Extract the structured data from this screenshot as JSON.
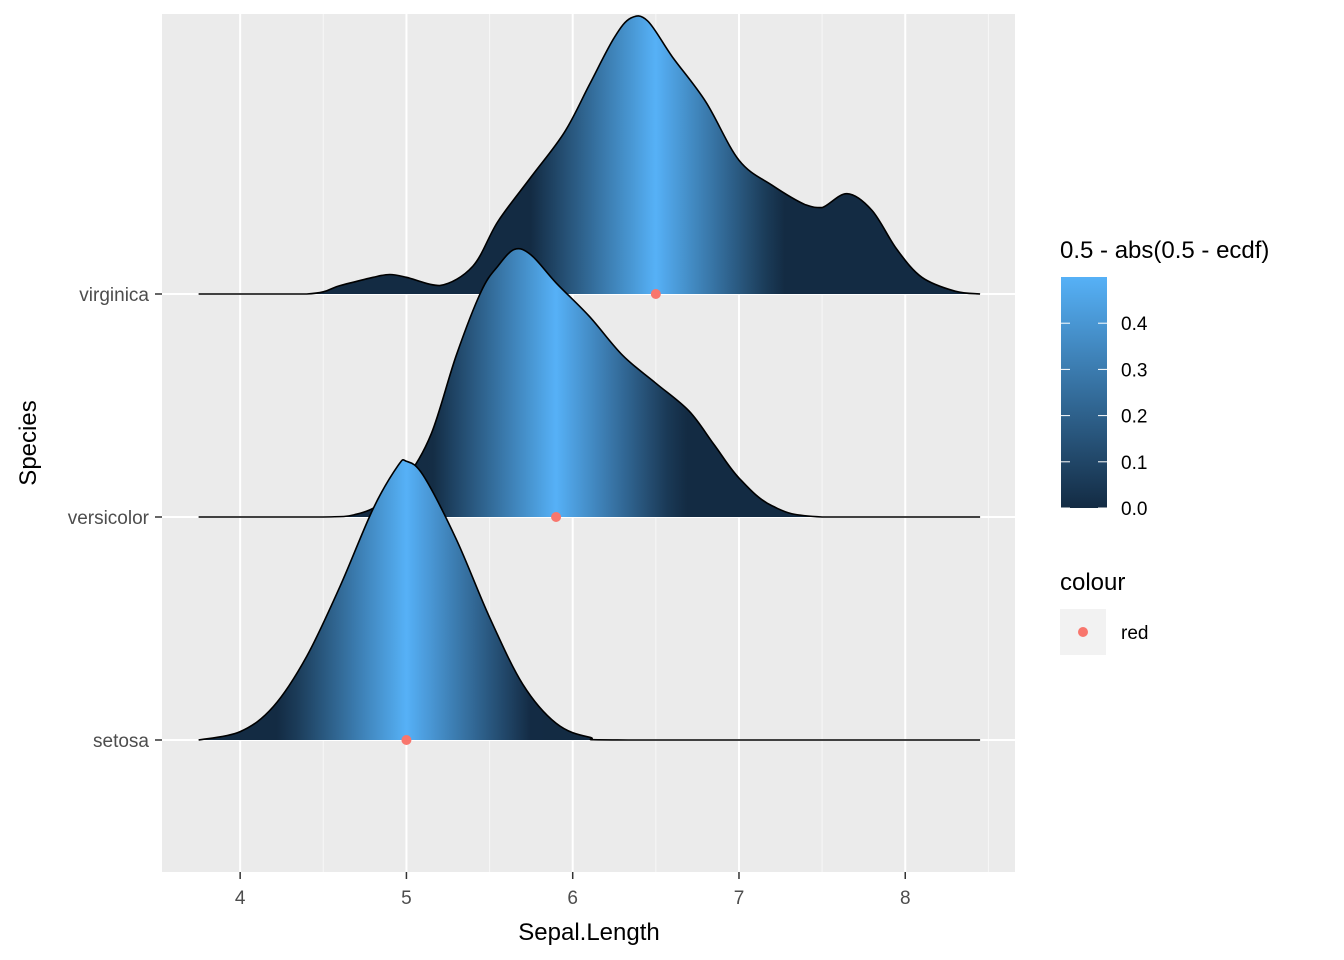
{
  "chart_data": {
    "type": "area",
    "subtype": "ridgeline density with quantile gradient fill",
    "xlabel": "Sepal.Length",
    "ylabel": "Species",
    "xlim": [
      3.53,
      8.66
    ],
    "x_ticks": [
      "4",
      "5",
      "6",
      "7",
      "8"
    ],
    "x_tick_values": [
      4,
      5,
      6,
      7,
      8
    ],
    "categories": [
      "setosa",
      "versicolor",
      "virginica"
    ],
    "scale": 2.5,
    "density_range": [
      3.75,
      8.45
    ],
    "series": [
      {
        "name": "setosa",
        "median": 5.0,
        "points": [
          [
            3.75,
            0.0
          ],
          [
            4.0,
            0.03
          ],
          [
            4.2,
            0.12
          ],
          [
            4.4,
            0.3
          ],
          [
            4.6,
            0.55
          ],
          [
            4.8,
            0.83
          ],
          [
            4.95,
            0.985
          ],
          [
            5.0,
            1.0
          ],
          [
            5.1,
            0.95
          ],
          [
            5.3,
            0.72
          ],
          [
            5.5,
            0.44
          ],
          [
            5.7,
            0.2
          ],
          [
            5.9,
            0.06
          ],
          [
            6.1,
            0.01
          ],
          [
            6.35,
            0.0
          ],
          [
            8.45,
            0.0
          ]
        ]
      },
      {
        "name": "versicolor",
        "median": 5.9,
        "points": [
          [
            3.75,
            0.0
          ],
          [
            4.5,
            0.0
          ],
          [
            4.7,
            0.01
          ],
          [
            4.85,
            0.05
          ],
          [
            5.0,
            0.14
          ],
          [
            5.15,
            0.3
          ],
          [
            5.3,
            0.58
          ],
          [
            5.45,
            0.81
          ],
          [
            5.55,
            0.9
          ],
          [
            5.65,
            0.96
          ],
          [
            5.75,
            0.94
          ],
          [
            5.9,
            0.84
          ],
          [
            6.1,
            0.72
          ],
          [
            6.3,
            0.58
          ],
          [
            6.5,
            0.48
          ],
          [
            6.7,
            0.38
          ],
          [
            6.85,
            0.26
          ],
          [
            7.0,
            0.14
          ],
          [
            7.2,
            0.04
          ],
          [
            7.5,
            0.0
          ],
          [
            8.45,
            0.0
          ]
        ]
      },
      {
        "name": "virginica",
        "median": 6.5,
        "points": [
          [
            3.75,
            0.0
          ],
          [
            4.4,
            0.0
          ],
          [
            4.6,
            0.03
          ],
          [
            4.8,
            0.06
          ],
          [
            4.9,
            0.07
          ],
          [
            5.0,
            0.06
          ],
          [
            5.2,
            0.03
          ],
          [
            5.4,
            0.1
          ],
          [
            5.55,
            0.26
          ],
          [
            5.75,
            0.42
          ],
          [
            5.95,
            0.58
          ],
          [
            6.1,
            0.75
          ],
          [
            6.25,
            0.92
          ],
          [
            6.35,
            0.99
          ],
          [
            6.45,
            0.98
          ],
          [
            6.6,
            0.85
          ],
          [
            6.8,
            0.69
          ],
          [
            7.0,
            0.48
          ],
          [
            7.2,
            0.39
          ],
          [
            7.4,
            0.32
          ],
          [
            7.5,
            0.31
          ],
          [
            7.65,
            0.36
          ],
          [
            7.8,
            0.3
          ],
          [
            7.95,
            0.16
          ],
          [
            8.1,
            0.06
          ],
          [
            8.3,
            0.01
          ],
          [
            8.45,
            0.0
          ]
        ]
      }
    ],
    "median_points": [
      {
        "species": "setosa",
        "x": 5.0
      },
      {
        "species": "versicolor",
        "x": 5.9
      },
      {
        "species": "virginica",
        "x": 6.5
      }
    ],
    "grid": true,
    "legend": {
      "placement": "right",
      "fill_title": "0.5 - abs(0.5 - ecdf)",
      "fill_range": [
        0.0,
        0.5
      ],
      "fill_ticks": [
        "0.0",
        "0.1",
        "0.2",
        "0.3",
        "0.4"
      ],
      "fill_tick_values": [
        0.0,
        0.1,
        0.2,
        0.3,
        0.4
      ],
      "colour_title": "colour",
      "colour_label": "red"
    },
    "colors": {
      "low": "#132B43",
      "high": "#56B1F7",
      "point": "#F8766D",
      "panel": "#EBEBEB",
      "grid_major": "#FFFFFF",
      "outline": "#000000"
    }
  }
}
